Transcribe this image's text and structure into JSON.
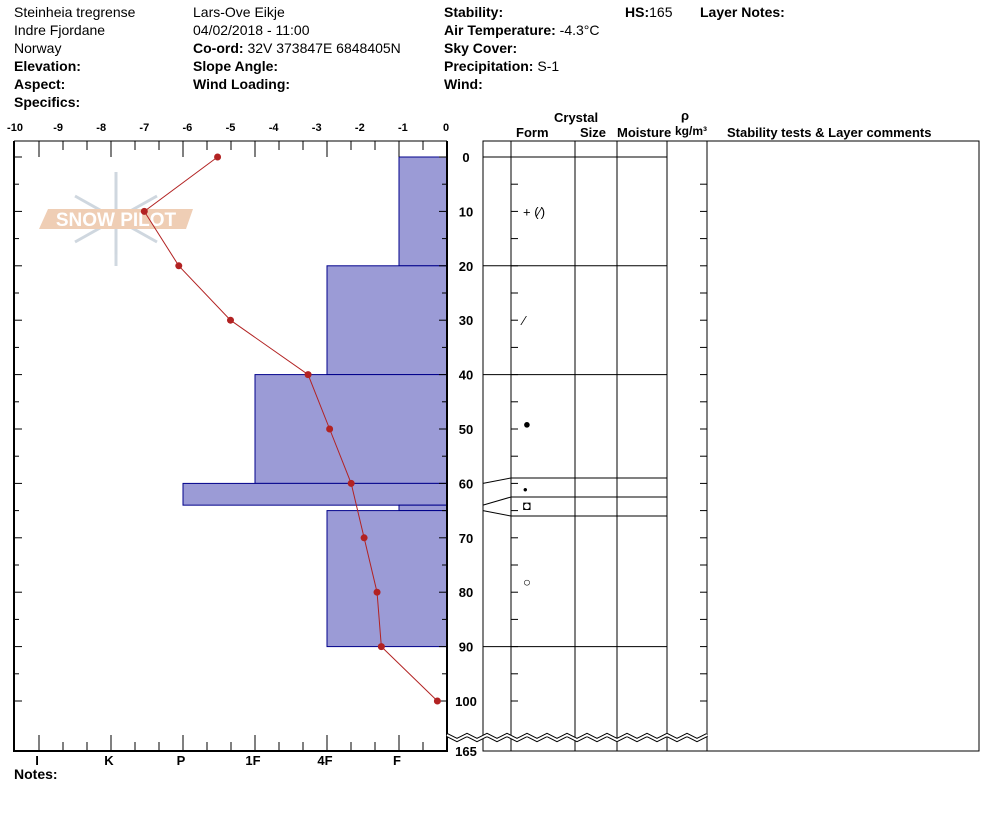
{
  "header": {
    "location": "Steinheia tregrense",
    "region": "Indre Fjordane",
    "country": "Norway",
    "elevation_label": "Elevation:",
    "aspect_label": "Aspect:",
    "specifics_label": "Specifics:",
    "observer": "Lars-Ove Eikje",
    "datetime": "04/02/2018 - 11:00",
    "coord_label": "Co-ord:",
    "coord_value": "32V 373847E 6848405N",
    "slope_label": "Slope Angle:",
    "wind_loading_label": "Wind Loading:",
    "stability_label": "Stability:",
    "air_temp_label": "Air Temperature:",
    "air_temp_value": "-4.3°C",
    "sky_label": "Sky Cover:",
    "precip_label": "Precipitation:",
    "precip_value": "S-1",
    "wind_label": "Wind:",
    "hs_label": "HS:",
    "hs_value": "165",
    "layer_notes_label": "Layer Notes:"
  },
  "notes_label": "Notes:",
  "watermark": "SNOW PILOT",
  "table_headers": {
    "crystal": "Crystal",
    "form": "Form",
    "size": "Size",
    "moisture": "Moisture",
    "rho": "ρ",
    "density_unit": "kg/m³",
    "stability": "Stability tests & Layer comments"
  },
  "chart_data": {
    "type": "line",
    "temperature_axis": {
      "ticks": [
        "-10",
        "-9",
        "-8",
        "-7",
        "-6",
        "-5",
        "-4",
        "-3",
        "-2",
        "-1",
        "0"
      ],
      "range": [
        -10,
        0
      ]
    },
    "depth_axis": {
      "ticks": [
        "0",
        "10",
        "20",
        "30",
        "40",
        "50",
        "60",
        "70",
        "80",
        "90",
        "100"
      ],
      "break_label": "165",
      "range": [
        0,
        100
      ]
    },
    "hardness_axis": {
      "ticks": [
        "I",
        "K",
        "P",
        "1F",
        "4F",
        "F"
      ]
    },
    "temperature_profile": {
      "depth": [
        0,
        10,
        20,
        30,
        40,
        50,
        60,
        70,
        80,
        90,
        100
      ],
      "temp": [
        -5.3,
        -7.0,
        -6.2,
        -5.0,
        -3.2,
        -2.7,
        -2.2,
        -1.9,
        -1.6,
        -1.5,
        -0.2
      ],
      "color": "#b22222"
    },
    "hardness_layers": [
      {
        "top": 0,
        "bottom": 20,
        "hardness": "F"
      },
      {
        "top": 20,
        "bottom": 40,
        "hardness": "4F"
      },
      {
        "top": 40,
        "bottom": 60,
        "hardness": "1F"
      },
      {
        "top": 60,
        "bottom": 64,
        "hardness": "P"
      },
      {
        "top": 64,
        "bottom": 65,
        "hardness": "F"
      },
      {
        "top": 65,
        "bottom": 90,
        "hardness": "4F"
      }
    ],
    "hardness_fill": "#9b9bd6",
    "hardness_stroke": "#00008b",
    "crystal_forms": [
      {
        "depth": 10,
        "symbol": "+ (⁄)"
      },
      {
        "depth": 30,
        "symbol": "⁄"
      },
      {
        "depth": 49,
        "symbol": "●"
      },
      {
        "depth": 61,
        "symbol": "•"
      },
      {
        "depth": 64,
        "symbol": "◘"
      },
      {
        "depth": 78,
        "symbol": "○"
      }
    ]
  }
}
